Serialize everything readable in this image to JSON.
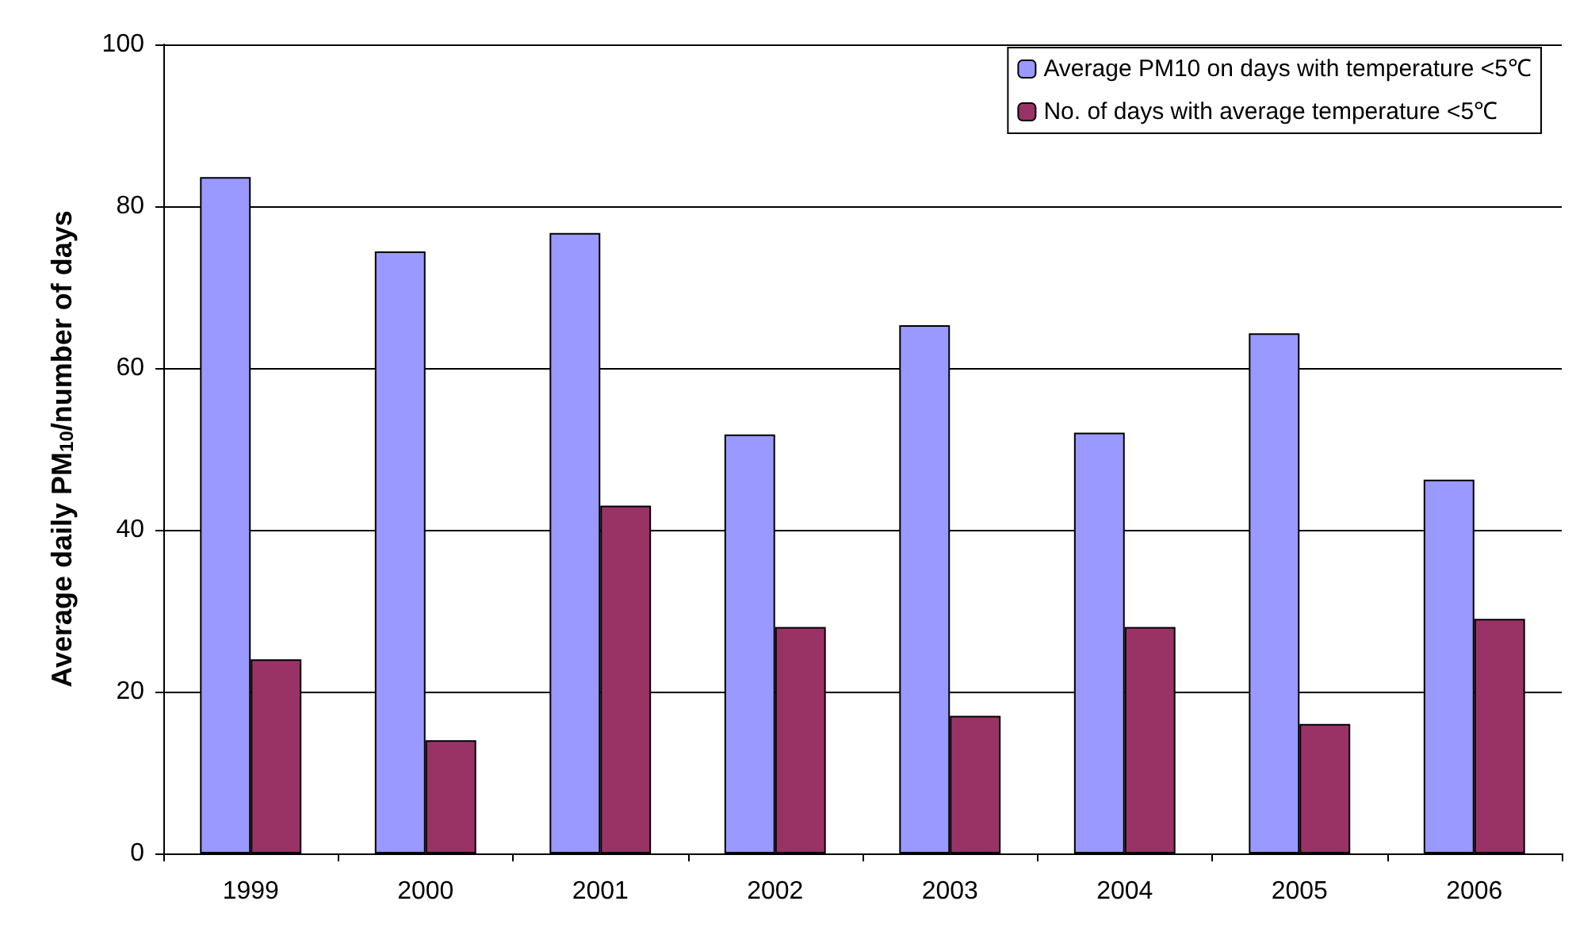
{
  "chart_data": {
    "type": "bar",
    "ylabel": "Average daily PM$_{10}$/number of days",
    "categories": [
      "1999",
      "2000",
      "2001",
      "2002",
      "2003",
      "2004",
      "2005",
      "2006"
    ],
    "series": [
      {
        "name": "Average PM10 on days with temperature <5℃",
        "color": "#9999ff",
        "values": [
          83.6,
          74.4,
          76.7,
          51.8,
          65.3,
          52.0,
          64.3,
          46.2
        ]
      },
      {
        "name": "No. of days with average temperature <5℃",
        "color": "#993366",
        "values": [
          24,
          14,
          43,
          28,
          17,
          28,
          16,
          29
        ]
      }
    ],
    "ylim": [
      0,
      100
    ],
    "yticks": [
      0,
      20,
      40,
      60,
      80,
      100
    ],
    "grid": "y",
    "legend": "top right"
  }
}
